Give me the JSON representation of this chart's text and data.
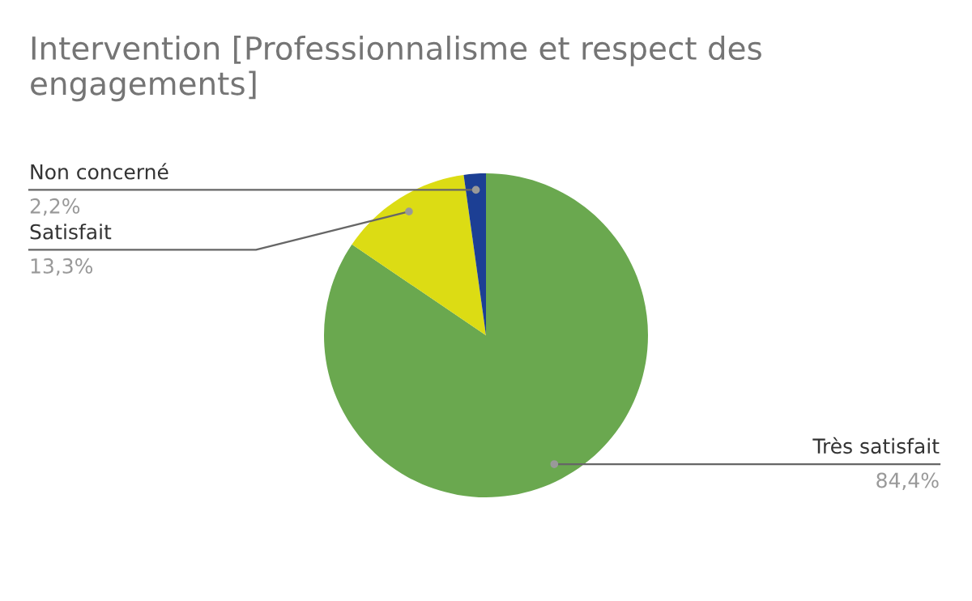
{
  "chart_data": {
    "type": "pie",
    "title": "Intervention [Professionnalisme et respect des engagements]",
    "categories": [
      "Très satisfait",
      "Satisfait",
      "Non concerné"
    ],
    "values": [
      84.4,
      13.3,
      2.2
    ],
    "colors": [
      "#6aa84f",
      "#dcdc14",
      "#1c3f94"
    ],
    "value_labels": [
      "84,4%",
      "13,3%",
      "2,2%"
    ]
  }
}
